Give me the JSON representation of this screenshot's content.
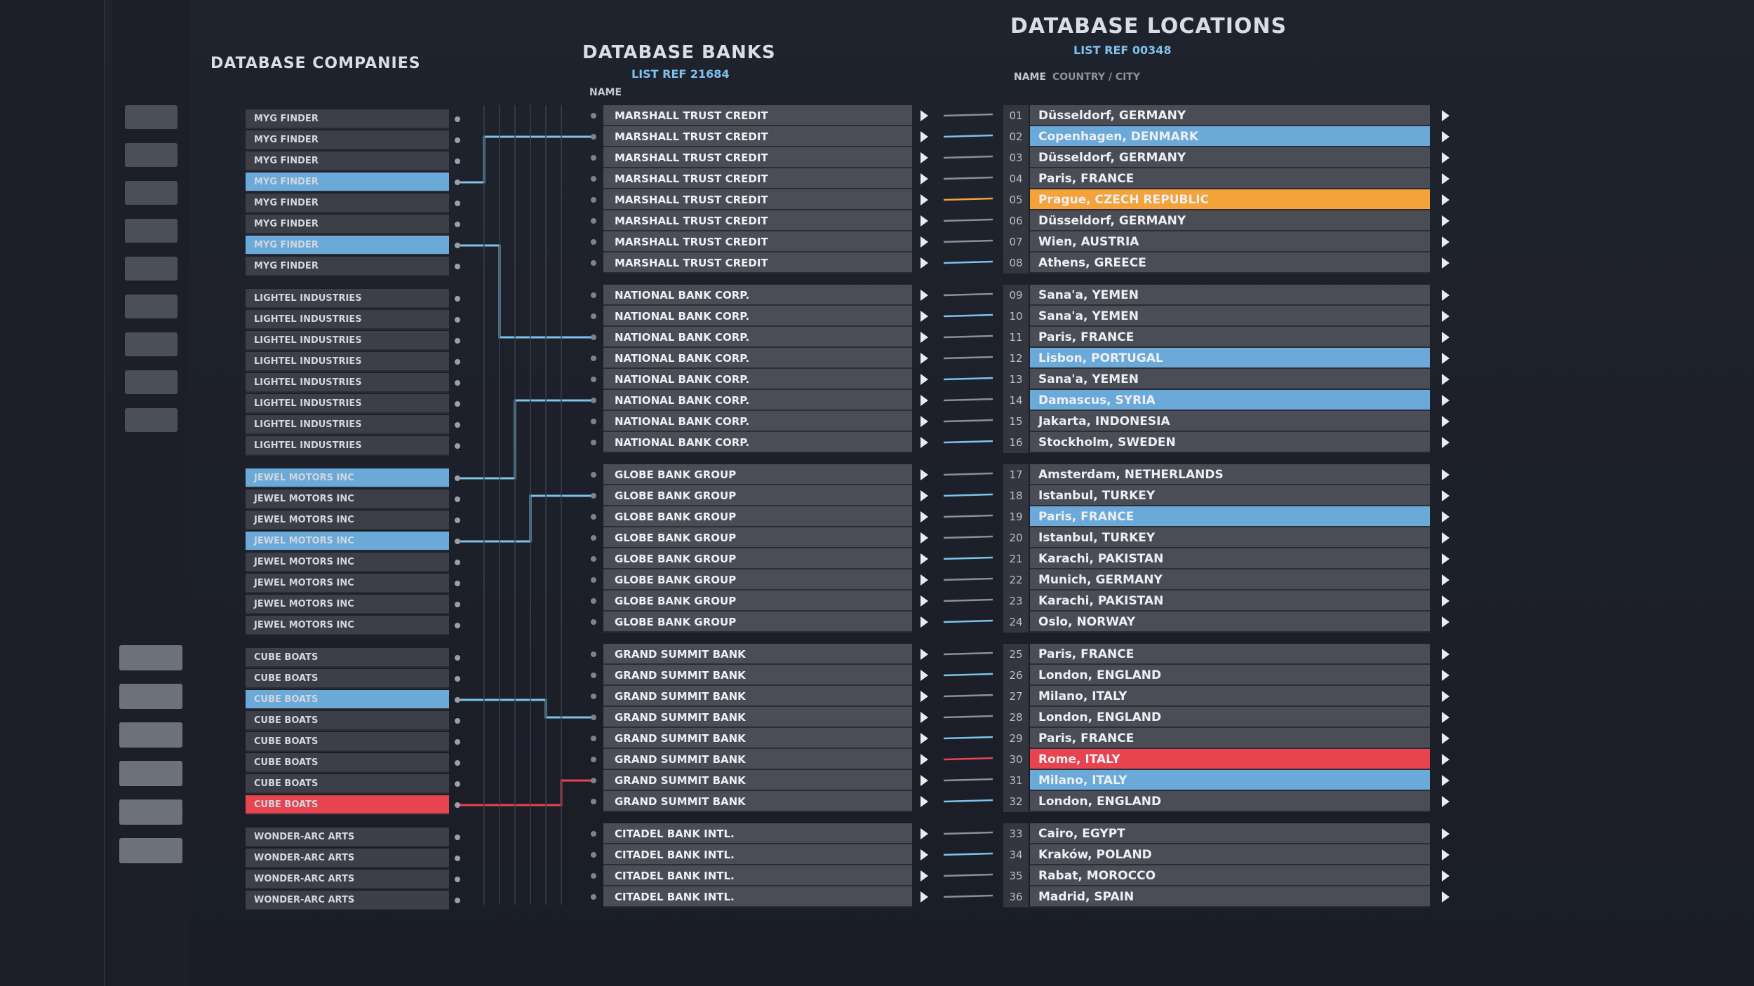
{
  "companies": {
    "title": "DATABASE COMPANIES",
    "groups": [
      {
        "rows": [
          {
            "name": "MYG FINDER"
          },
          {
            "name": "MYG FINDER"
          },
          {
            "name": "MYG FINDER"
          },
          {
            "name": "MYG FINDER",
            "color": "#6aa9d8"
          },
          {
            "name": "MYG FINDER"
          },
          {
            "name": "MYG FINDER"
          },
          {
            "name": "MYG FINDER",
            "color": "#6aa9d8"
          },
          {
            "name": "MYG FINDER"
          }
        ]
      },
      {
        "rows": [
          {
            "name": "LIGHTEL INDUSTRIES"
          },
          {
            "name": "LIGHTEL INDUSTRIES"
          },
          {
            "name": "LIGHTEL INDUSTRIES"
          },
          {
            "name": "LIGHTEL INDUSTRIES"
          },
          {
            "name": "LIGHTEL INDUSTRIES"
          },
          {
            "name": "LIGHTEL INDUSTRIES"
          },
          {
            "name": "LIGHTEL INDUSTRIES"
          },
          {
            "name": "LIGHTEL INDUSTRIES"
          }
        ]
      },
      {
        "rows": [
          {
            "name": "JEWEL MOTORS INC",
            "color": "#6aa9d8"
          },
          {
            "name": "JEWEL MOTORS INC"
          },
          {
            "name": "JEWEL MOTORS INC"
          },
          {
            "name": "JEWEL MOTORS INC",
            "color": "#6aa9d8"
          },
          {
            "name": "JEWEL MOTORS INC"
          },
          {
            "name": "JEWEL MOTORS INC"
          },
          {
            "name": "JEWEL MOTORS INC"
          },
          {
            "name": "JEWEL MOTORS INC"
          }
        ]
      },
      {
        "rows": [
          {
            "name": "CUBE BOATS"
          },
          {
            "name": "CUBE BOATS"
          },
          {
            "name": "CUBE BOATS",
            "color": "#6aa9d8"
          },
          {
            "name": "CUBE BOATS"
          },
          {
            "name": "CUBE BOATS"
          },
          {
            "name": "CUBE BOATS"
          },
          {
            "name": "CUBE BOATS"
          },
          {
            "name": "CUBE BOATS",
            "color": "#e8444f"
          }
        ]
      },
      {
        "rows": [
          {
            "name": "WONDER-ARC ARTS"
          },
          {
            "name": "WONDER-ARC ARTS"
          },
          {
            "name": "WONDER-ARC ARTS"
          },
          {
            "name": "WONDER-ARC ARTS"
          }
        ]
      }
    ]
  },
  "banks": {
    "title": "DATABASE BANKS",
    "list_ref": "LIST REF 21684",
    "column": "NAME",
    "groups": [
      {
        "rows": [
          "MARSHALL TRUST CREDIT",
          "MARSHALL TRUST CREDIT",
          "MARSHALL TRUST CREDIT",
          "MARSHALL TRUST CREDIT",
          "MARSHALL TRUST CREDIT",
          "MARSHALL TRUST CREDIT",
          "MARSHALL TRUST CREDIT",
          "MARSHALL TRUST CREDIT"
        ]
      },
      {
        "rows": [
          "NATIONAL BANK CORP.",
          "NATIONAL BANK CORP.",
          "NATIONAL BANK CORP.",
          "NATIONAL BANK CORP.",
          "NATIONAL BANK CORP.",
          "NATIONAL BANK CORP.",
          "NATIONAL BANK CORP.",
          "NATIONAL BANK CORP."
        ]
      },
      {
        "rows": [
          "GLOBE BANK GROUP",
          "GLOBE BANK GROUP",
          "GLOBE BANK GROUP",
          "GLOBE BANK GROUP",
          "GLOBE BANK GROUP",
          "GLOBE BANK GROUP",
          "GLOBE BANK GROUP",
          "GLOBE BANK GROUP"
        ]
      },
      {
        "rows": [
          "GRAND SUMMIT BANK",
          "GRAND SUMMIT BANK",
          "GRAND SUMMIT BANK",
          "GRAND SUMMIT BANK",
          "GRAND SUMMIT BANK",
          "GRAND SUMMIT BANK",
          "GRAND SUMMIT BANK",
          "GRAND SUMMIT BANK"
        ]
      },
      {
        "rows": [
          "CITADEL BANK INTL.",
          "CITADEL BANK INTL.",
          "CITADEL BANK INTL.",
          "CITADEL BANK INTL."
        ]
      }
    ]
  },
  "locations": {
    "title": "DATABASE LOCATIONS",
    "list_ref": "LIST REF 00348",
    "column": "NAME",
    "column_sub": "COUNTRY / CITY",
    "groups": [
      {
        "rows": [
          {
            "no": "01",
            "name": "Düsseldorf, GERMANY"
          },
          {
            "no": "02",
            "name": "Copenhagen, DENMARK",
            "color": "#6aa9d8"
          },
          {
            "no": "03",
            "name": "Düsseldorf, GERMANY"
          },
          {
            "no": "04",
            "name": "Paris, FRANCE"
          },
          {
            "no": "05",
            "name": "Prague, CZECH REPUBLIC",
            "color": "#f4a23a"
          },
          {
            "no": "06",
            "name": "Düsseldorf, GERMANY"
          },
          {
            "no": "07",
            "name": "Wien, AUSTRIA"
          },
          {
            "no": "08",
            "name": "Athens, GREECE"
          }
        ]
      },
      {
        "rows": [
          {
            "no": "09",
            "name": "Sana'a, YEMEN"
          },
          {
            "no": "10",
            "name": "Sana'a, YEMEN"
          },
          {
            "no": "11",
            "name": "Paris, FRANCE"
          },
          {
            "no": "12",
            "name": "Lisbon, PORTUGAL",
            "color": "#6aa9d8"
          },
          {
            "no": "13",
            "name": "Sana'a, YEMEN"
          },
          {
            "no": "14",
            "name": "Damascus, SYRIA",
            "color": "#6aa9d8"
          },
          {
            "no": "15",
            "name": "Jakarta, INDONESIA"
          },
          {
            "no": "16",
            "name": "Stockholm, SWEDEN"
          }
        ]
      },
      {
        "rows": [
          {
            "no": "17",
            "name": "Amsterdam, NETHERLANDS"
          },
          {
            "no": "18",
            "name": "Istanbul, TURKEY"
          },
          {
            "no": "19",
            "name": "Paris, FRANCE",
            "color": "#6aa9d8"
          },
          {
            "no": "20",
            "name": "Istanbul, TURKEY"
          },
          {
            "no": "21",
            "name": "Karachi, PAKISTAN"
          },
          {
            "no": "22",
            "name": "Munich, GERMANY"
          },
          {
            "no": "23",
            "name": "Karachi, PAKISTAN"
          },
          {
            "no": "24",
            "name": "Oslo, NORWAY"
          }
        ]
      },
      {
        "rows": [
          {
            "no": "25",
            "name": "Paris, FRANCE"
          },
          {
            "no": "26",
            "name": "London, ENGLAND"
          },
          {
            "no": "27",
            "name": "Milano, ITALY"
          },
          {
            "no": "28",
            "name": "London, ENGLAND"
          },
          {
            "no": "29",
            "name": "Paris, FRANCE"
          },
          {
            "no": "30",
            "name": "Rome, ITALY",
            "color": "#e8444f"
          },
          {
            "no": "31",
            "name": "Milano, ITALY",
            "color": "#6aa9d8"
          },
          {
            "no": "32",
            "name": "London, ENGLAND"
          }
        ]
      },
      {
        "rows": [
          {
            "no": "33",
            "name": "Cairo, EGYPT"
          },
          {
            "no": "34",
            "name": "Kraków, POLAND"
          },
          {
            "no": "35",
            "name": "Rabat, MOROCCO"
          },
          {
            "no": "36",
            "name": "Madrid, SPAIN"
          }
        ]
      }
    ]
  }
}
